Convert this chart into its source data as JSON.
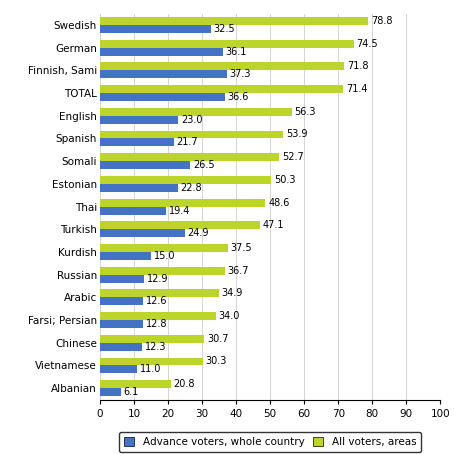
{
  "categories": [
    "Swedish",
    "German",
    "Finnish, Sami",
    "TOTAL",
    "English",
    "Spanish",
    "Somali",
    "Estonian",
    "Thai",
    "Turkish",
    "Kurdish",
    "Russian",
    "Arabic",
    "Farsi; Persian",
    "Chinese",
    "Vietnamese",
    "Albanian"
  ],
  "advance_voters": [
    32.5,
    36.1,
    37.3,
    36.6,
    23.0,
    21.7,
    26.5,
    22.8,
    19.4,
    24.9,
    15.0,
    12.9,
    12.6,
    12.8,
    12.3,
    11.0,
    6.1
  ],
  "all_voters": [
    78.8,
    74.5,
    71.8,
    71.4,
    56.3,
    53.9,
    52.7,
    50.3,
    48.6,
    47.1,
    37.5,
    36.7,
    34.9,
    34.0,
    30.7,
    30.3,
    20.8
  ],
  "color_advance": "#4472c4",
  "color_all": "#bdd42a",
  "xlim": [
    0,
    100
  ],
  "xticks": [
    0,
    10,
    20,
    30,
    40,
    50,
    60,
    70,
    80,
    90,
    100
  ],
  "legend_advance": "Advance voters, whole country",
  "legend_all": "All voters, areas",
  "bar_height": 0.35,
  "label_fontsize": 7.0,
  "tick_fontsize": 7.5,
  "legend_fontsize": 7.5
}
